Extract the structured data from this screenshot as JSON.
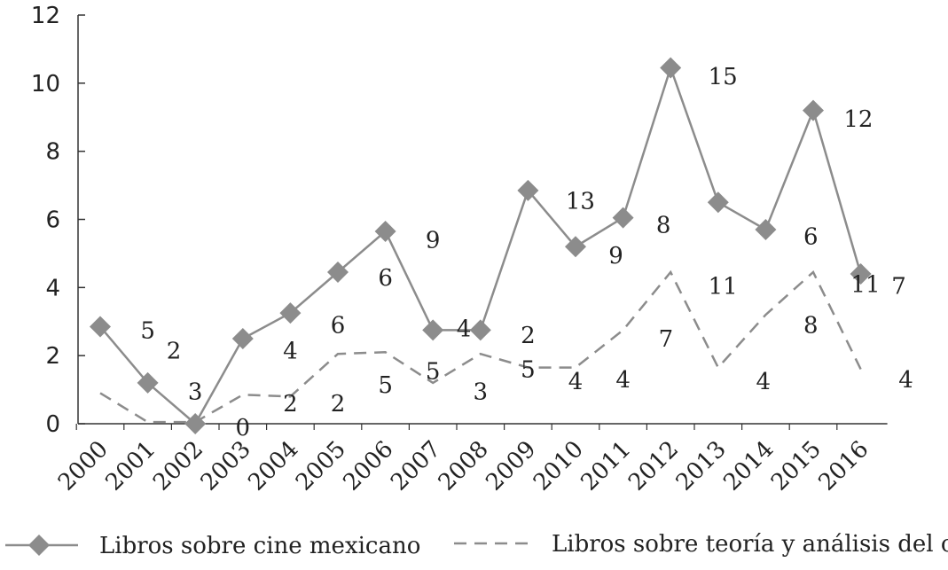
{
  "chart_data": {
    "type": "line",
    "categories": [
      "2000",
      "2001",
      "2002",
      "2003",
      "2004",
      "2005",
      "2006",
      "2007",
      "2008",
      "2009",
      "2010",
      "2011",
      "2012",
      "2013",
      "2014",
      "2015",
      "2016"
    ],
    "ylim": [
      0,
      12
    ],
    "yticks": [
      "0",
      "2",
      "4",
      "6",
      "8",
      "10",
      "12"
    ],
    "series": [
      {
        "name": "Libros sobre cine mexicano",
        "style": "solid-diamond",
        "color": "#8c8c8c",
        "values": [
          2.85,
          1.2,
          0.0,
          2.5,
          3.25,
          4.45,
          5.65,
          2.75,
          2.75,
          6.85,
          5.2,
          6.05,
          10.45,
          6.5,
          5.7,
          9.2,
          4.4
        ]
      },
      {
        "name": "Libros sobre teoría y análisis del cine",
        "style": "dashed",
        "color": "#8c8c8c",
        "values": [
          0.9,
          0.05,
          0.05,
          0.85,
          0.8,
          2.05,
          2.1,
          1.2,
          2.05,
          1.65,
          1.65,
          2.75,
          4.45,
          1.65,
          3.2,
          4.45,
          1.6
        ]
      }
    ],
    "data_labels": [
      {
        "text": "5",
        "x": 1.0,
        "y": 2.75
      },
      {
        "text": "2",
        "x": 1.55,
        "y": 2.15
      },
      {
        "text": "3",
        "x": 2.0,
        "y": 0.95
      },
      {
        "text": "0",
        "x": 3.0,
        "y": -0.1
      },
      {
        "text": "4",
        "x": 4.0,
        "y": 2.15
      },
      {
        "text": "2",
        "x": 4.0,
        "y": 0.6
      },
      {
        "text": "6",
        "x": 5.0,
        "y": 2.9
      },
      {
        "text": "2",
        "x": 5.0,
        "y": 0.6
      },
      {
        "text": "6",
        "x": 6.0,
        "y": 4.3
      },
      {
        "text": "5",
        "x": 6.0,
        "y": 1.15
      },
      {
        "text": "9",
        "x": 7.0,
        "y": 5.4
      },
      {
        "text": "4",
        "x": 7.65,
        "y": 2.8
      },
      {
        "text": "5",
        "x": 7.0,
        "y": 1.55
      },
      {
        "text": "3",
        "x": 8.0,
        "y": 0.95
      },
      {
        "text": "2",
        "x": 9.0,
        "y": 2.6
      },
      {
        "text": "5",
        "x": 9.0,
        "y": 1.6
      },
      {
        "text": "13",
        "x": 10.1,
        "y": 6.55
      },
      {
        "text": "4",
        "x": 10.0,
        "y": 1.25
      },
      {
        "text": "9",
        "x": 10.85,
        "y": 4.95
      },
      {
        "text": "4",
        "x": 11.0,
        "y": 1.3
      },
      {
        "text": "8",
        "x": 11.85,
        "y": 5.85
      },
      {
        "text": "7",
        "x": 11.9,
        "y": 2.5
      },
      {
        "text": "15",
        "x": 13.1,
        "y": 10.2
      },
      {
        "text": "11",
        "x": 13.1,
        "y": 4.05
      },
      {
        "text": "4",
        "x": 13.95,
        "y": 1.25
      },
      {
        "text": "6",
        "x": 14.95,
        "y": 5.5
      },
      {
        "text": "8",
        "x": 14.95,
        "y": 2.9
      },
      {
        "text": "12",
        "x": 15.95,
        "y": 8.95
      },
      {
        "text": "11",
        "x": 16.1,
        "y": 4.1
      },
      {
        "text": "7",
        "x": 16.8,
        "y": 4.05
      },
      {
        "text": "4",
        "x": 16.95,
        "y": 1.3
      }
    ],
    "legend": {
      "placement": "bottom",
      "items": [
        "Libros sobre cine mexicano",
        "Libros sobre teoría y análisis del cine"
      ]
    },
    "grid": false
  }
}
